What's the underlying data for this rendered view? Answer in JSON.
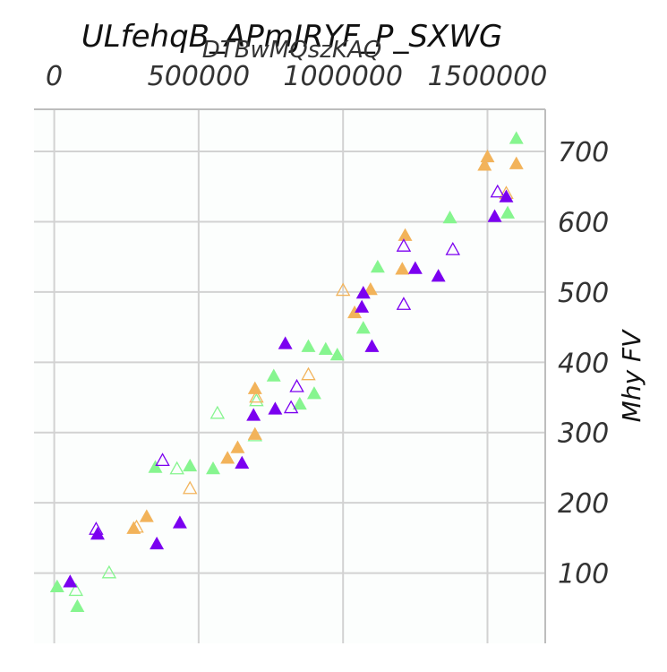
{
  "chart_data": {
    "type": "scatter",
    "title": "ULfehqB_APmJRYF_P_SXWG",
    "xlabel": "DTBwMQszKAQ",
    "ylabel": "Mhy FV",
    "xlim": [
      -70000,
      1700000
    ],
    "ylim": [
      0,
      760
    ],
    "x_ticks": [
      0,
      500000,
      1000000,
      1500000
    ],
    "x_tick_labels": [
      "0",
      "500000",
      "1000000",
      "1500000"
    ],
    "y_ticks": [
      100,
      200,
      300,
      400,
      500,
      600,
      700
    ],
    "y_tick_labels": [
      "100",
      "200",
      "300",
      "400",
      "500",
      "600",
      "700"
    ],
    "x_axis_position": "top",
    "y_axis_position": "right",
    "grid": true,
    "marker": "triangle",
    "colors": {
      "green": "#86f58f",
      "orange": "#f2b35a",
      "purple": "#7b00f0"
    },
    "series": [
      {
        "color": "#86f58f",
        "filled": [
          [
            10000,
            80
          ],
          [
            80000,
            52
          ],
          [
            350000,
            250
          ],
          [
            470000,
            252
          ],
          [
            550000,
            248
          ],
          [
            760000,
            380
          ],
          [
            850000,
            340
          ],
          [
            880000,
            422
          ],
          [
            900000,
            355
          ],
          [
            940000,
            418
          ],
          [
            980000,
            410
          ],
          [
            1070000,
            448
          ],
          [
            1120000,
            535
          ],
          [
            1370000,
            605
          ],
          [
            1570000,
            612
          ],
          [
            1600000,
            718
          ]
        ],
        "hollow": [
          [
            75000,
            75
          ],
          [
            190000,
            100
          ],
          [
            425000,
            248
          ],
          [
            565000,
            327
          ],
          [
            695000,
            295
          ],
          [
            700000,
            345
          ]
        ]
      },
      {
        "color": "#f2b35a",
        "filled": [
          [
            275000,
            163
          ],
          [
            320000,
            180
          ],
          [
            600000,
            263
          ],
          [
            635000,
            278
          ],
          [
            695000,
            297
          ],
          [
            695000,
            362
          ],
          [
            1040000,
            470
          ],
          [
            1095000,
            503
          ],
          [
            1205000,
            532
          ],
          [
            1215000,
            580
          ],
          [
            1490000,
            680
          ],
          [
            1500000,
            692
          ],
          [
            1600000,
            682
          ]
        ],
        "hollow": [
          [
            285000,
            165
          ],
          [
            470000,
            220
          ],
          [
            700000,
            350
          ],
          [
            880000,
            382
          ],
          [
            1000000,
            502
          ],
          [
            1565000,
            640
          ]
        ]
      },
      {
        "color": "#7b00f0",
        "filled": [
          [
            55000,
            87
          ],
          [
            150000,
            155
          ],
          [
            355000,
            141
          ],
          [
            435000,
            171
          ],
          [
            650000,
            256
          ],
          [
            690000,
            324
          ],
          [
            765000,
            333
          ],
          [
            800000,
            426
          ],
          [
            1065000,
            478
          ],
          [
            1070000,
            498
          ],
          [
            1100000,
            422
          ],
          [
            1250000,
            533
          ],
          [
            1330000,
            522
          ],
          [
            1525000,
            607
          ],
          [
            1565000,
            635
          ]
        ],
        "hollow": [
          [
            145000,
            162
          ],
          [
            375000,
            260
          ],
          [
            820000,
            335
          ],
          [
            840000,
            365
          ],
          [
            1210000,
            482
          ],
          [
            1210000,
            565
          ],
          [
            1380000,
            560
          ],
          [
            1535000,
            642
          ]
        ]
      }
    ]
  }
}
